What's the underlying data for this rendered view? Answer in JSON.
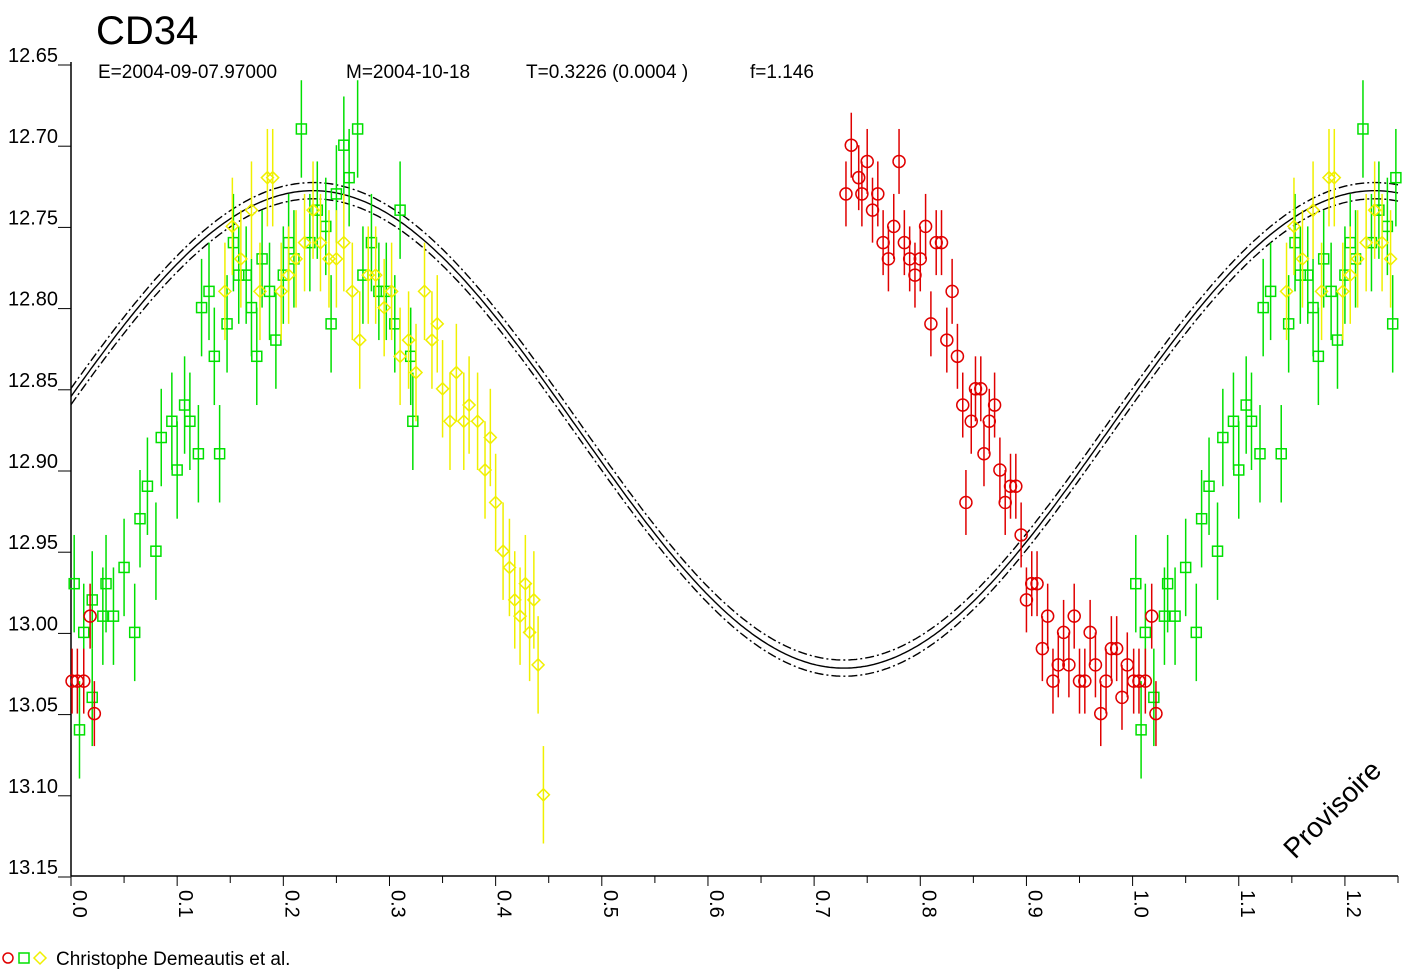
{
  "chart_data": {
    "type": "scatter",
    "title": "CD34",
    "subtitle": {
      "epoch": "E=2004-09-07.97000",
      "mean": "M=2004-10-18",
      "period": "T=0.3226 (0.0004 )",
      "f": "f=1.146"
    },
    "xlabel": "",
    "ylabel": "",
    "xlim": [
      0.0,
      1.25
    ],
    "ylim": [
      12.65,
      13.15
    ],
    "y_inverted": true,
    "x_ticks": [
      "0.0",
      "0.1",
      "0.2",
      "0.3",
      "0.4",
      "0.5",
      "0.6",
      "0.7",
      "0.8",
      "0.9",
      "1.0",
      "1.1",
      "1.2"
    ],
    "y_ticks": [
      "12.65",
      "12.70",
      "12.75",
      "12.80",
      "12.85",
      "12.90",
      "12.95",
      "13.00",
      "13.05",
      "13.10",
      "13.15"
    ],
    "model": {
      "description": "sinusoidal fit",
      "mean": 12.875,
      "amplitude": 0.147,
      "phase_of_max": 0.228,
      "envelope": 0.005
    },
    "legend_text": "Christophe Demeautis et al.",
    "watermark": "Provisoire",
    "series": [
      {
        "marker": "square",
        "color": "#00e000",
        "points": [
          [
            0.003,
            12.97,
            0.03
          ],
          [
            0.008,
            13.06,
            0.03
          ],
          [
            0.012,
            13.0,
            0.03
          ],
          [
            0.02,
            13.04,
            0.03
          ],
          [
            0.02,
            12.98,
            0.03
          ],
          [
            0.03,
            12.99,
            0.03
          ],
          [
            0.033,
            12.97,
            0.03
          ],
          [
            0.04,
            12.99,
            0.03
          ],
          [
            0.05,
            12.96,
            0.03
          ],
          [
            0.06,
            13.0,
            0.03
          ],
          [
            0.065,
            12.93,
            0.03
          ],
          [
            0.072,
            12.91,
            0.03
          ],
          [
            0.08,
            12.95,
            0.03
          ],
          [
            0.085,
            12.88,
            0.03
          ],
          [
            0.095,
            12.87,
            0.03
          ],
          [
            0.1,
            12.9,
            0.03
          ],
          [
            0.107,
            12.86,
            0.03
          ],
          [
            0.112,
            12.87,
            0.03
          ],
          [
            0.12,
            12.89,
            0.03
          ],
          [
            0.123,
            12.8,
            0.03
          ],
          [
            0.13,
            12.79,
            0.03
          ],
          [
            0.135,
            12.83,
            0.03
          ],
          [
            0.14,
            12.89,
            0.03
          ],
          [
            0.147,
            12.81,
            0.03
          ],
          [
            0.153,
            12.76,
            0.03
          ],
          [
            0.158,
            12.78,
            0.03
          ],
          [
            0.165,
            12.78,
            0.03
          ],
          [
            0.17,
            12.8,
            0.03
          ],
          [
            0.175,
            12.83,
            0.03
          ],
          [
            0.18,
            12.77,
            0.03
          ],
          [
            0.187,
            12.79,
            0.03
          ],
          [
            0.193,
            12.82,
            0.03
          ],
          [
            0.2,
            12.78,
            0.03
          ],
          [
            0.205,
            12.76,
            0.03
          ],
          [
            0.21,
            12.77,
            0.03
          ],
          [
            0.217,
            12.69,
            0.03
          ],
          [
            0.225,
            12.76,
            0.03
          ],
          [
            0.232,
            12.74,
            0.03
          ],
          [
            0.24,
            12.75,
            0.03
          ],
          [
            0.245,
            12.81,
            0.03
          ],
          [
            0.25,
            12.73,
            0.03
          ],
          [
            0.257,
            12.7,
            0.03
          ],
          [
            0.262,
            12.72,
            0.03
          ],
          [
            0.27,
            12.69,
            0.03
          ],
          [
            0.275,
            12.78,
            0.03
          ],
          [
            0.283,
            12.76,
            0.03
          ],
          [
            0.29,
            12.79,
            0.03
          ],
          [
            0.297,
            12.79,
            0.03
          ],
          [
            0.305,
            12.81,
            0.03
          ],
          [
            0.31,
            12.74,
            0.03
          ],
          [
            0.32,
            12.83,
            0.03
          ],
          [
            0.322,
            12.87,
            0.03
          ],
          [
            1.003,
            12.97,
            0.03
          ],
          [
            1.008,
            13.06,
            0.03
          ],
          [
            1.012,
            13.0,
            0.03
          ],
          [
            1.02,
            13.04,
            0.03
          ],
          [
            1.03,
            12.99,
            0.03
          ],
          [
            1.033,
            12.97,
            0.03
          ],
          [
            1.04,
            12.99,
            0.03
          ],
          [
            1.05,
            12.96,
            0.03
          ],
          [
            1.06,
            13.0,
            0.03
          ],
          [
            1.065,
            12.93,
            0.03
          ],
          [
            1.072,
            12.91,
            0.03
          ],
          [
            1.08,
            12.95,
            0.03
          ],
          [
            1.085,
            12.88,
            0.03
          ],
          [
            1.095,
            12.87,
            0.03
          ],
          [
            1.1,
            12.9,
            0.03
          ],
          [
            1.107,
            12.86,
            0.03
          ],
          [
            1.112,
            12.87,
            0.03
          ],
          [
            1.12,
            12.89,
            0.03
          ],
          [
            1.123,
            12.8,
            0.03
          ],
          [
            1.13,
            12.79,
            0.03
          ],
          [
            1.14,
            12.89,
            0.03
          ],
          [
            1.147,
            12.81,
            0.03
          ],
          [
            1.153,
            12.76,
            0.03
          ],
          [
            1.158,
            12.78,
            0.03
          ],
          [
            1.165,
            12.78,
            0.03
          ],
          [
            1.17,
            12.8,
            0.03
          ],
          [
            1.175,
            12.83,
            0.03
          ],
          [
            1.18,
            12.77,
            0.03
          ],
          [
            1.187,
            12.79,
            0.03
          ],
          [
            1.193,
            12.82,
            0.03
          ],
          [
            1.2,
            12.78,
            0.03
          ],
          [
            1.205,
            12.76,
            0.03
          ],
          [
            1.21,
            12.77,
            0.03
          ],
          [
            1.217,
            12.69,
            0.03
          ],
          [
            1.225,
            12.76,
            0.03
          ],
          [
            1.232,
            12.74,
            0.03
          ],
          [
            1.24,
            12.75,
            0.03
          ],
          [
            1.245,
            12.81,
            0.03
          ],
          [
            1.248,
            12.72,
            0.03
          ]
        ]
      },
      {
        "marker": "diamond",
        "color": "#f0f000",
        "points": [
          [
            0.145,
            12.79,
            0.03
          ],
          [
            0.152,
            12.75,
            0.03
          ],
          [
            0.16,
            12.77,
            0.03
          ],
          [
            0.17,
            12.74,
            0.03
          ],
          [
            0.178,
            12.79,
            0.03
          ],
          [
            0.185,
            12.72,
            0.03
          ],
          [
            0.19,
            12.72,
            0.03
          ],
          [
            0.198,
            12.79,
            0.03
          ],
          [
            0.205,
            12.78,
            0.03
          ],
          [
            0.212,
            12.77,
            0.03
          ],
          [
            0.22,
            12.76,
            0.03
          ],
          [
            0.228,
            12.74,
            0.03
          ],
          [
            0.235,
            12.76,
            0.03
          ],
          [
            0.243,
            12.77,
            0.03
          ],
          [
            0.25,
            12.77,
            0.03
          ],
          [
            0.257,
            12.76,
            0.03
          ],
          [
            0.265,
            12.79,
            0.03
          ],
          [
            0.272,
            12.82,
            0.03
          ],
          [
            0.28,
            12.78,
            0.03
          ],
          [
            0.287,
            12.78,
            0.03
          ],
          [
            0.295,
            12.8,
            0.03
          ],
          [
            0.302,
            12.79,
            0.03
          ],
          [
            0.31,
            12.83,
            0.03
          ],
          [
            0.318,
            12.82,
            0.03
          ],
          [
            0.325,
            12.84,
            0.03
          ],
          [
            0.333,
            12.79,
            0.03
          ],
          [
            0.34,
            12.82,
            0.03
          ],
          [
            0.345,
            12.81,
            0.03
          ],
          [
            0.35,
            12.85,
            0.03
          ],
          [
            0.357,
            12.87,
            0.03
          ],
          [
            0.363,
            12.84,
            0.03
          ],
          [
            0.37,
            12.87,
            0.03
          ],
          [
            0.375,
            12.86,
            0.03
          ],
          [
            0.383,
            12.87,
            0.03
          ],
          [
            0.39,
            12.9,
            0.03
          ],
          [
            0.395,
            12.88,
            0.03
          ],
          [
            0.4,
            12.92,
            0.03
          ],
          [
            0.407,
            12.95,
            0.03
          ],
          [
            0.413,
            12.96,
            0.03
          ],
          [
            0.418,
            12.98,
            0.03
          ],
          [
            0.423,
            12.99,
            0.03
          ],
          [
            0.428,
            12.97,
            0.03
          ],
          [
            0.432,
            13.0,
            0.03
          ],
          [
            0.436,
            12.98,
            0.03
          ],
          [
            0.44,
            13.02,
            0.03
          ],
          [
            0.445,
            13.1,
            0.03
          ],
          [
            1.145,
            12.79,
            0.03
          ],
          [
            1.152,
            12.75,
            0.03
          ],
          [
            1.16,
            12.77,
            0.03
          ],
          [
            1.17,
            12.74,
            0.03
          ],
          [
            1.178,
            12.79,
            0.03
          ],
          [
            1.185,
            12.72,
            0.03
          ],
          [
            1.19,
            12.72,
            0.03
          ],
          [
            1.198,
            12.79,
            0.03
          ],
          [
            1.205,
            12.78,
            0.03
          ],
          [
            1.212,
            12.77,
            0.03
          ],
          [
            1.22,
            12.76,
            0.03
          ],
          [
            1.228,
            12.74,
            0.03
          ],
          [
            1.235,
            12.76,
            0.03
          ],
          [
            1.243,
            12.77,
            0.03
          ]
        ]
      },
      {
        "marker": "circle",
        "color": "#e00000",
        "points": [
          [
            0.001,
            13.03,
            0.02
          ],
          [
            0.006,
            13.03,
            0.02
          ],
          [
            0.012,
            13.03,
            0.02
          ],
          [
            0.018,
            12.99,
            0.02
          ],
          [
            0.022,
            13.05,
            0.02
          ],
          [
            0.73,
            12.73,
            0.02
          ],
          [
            0.735,
            12.7,
            0.02
          ],
          [
            0.742,
            12.72,
            0.02
          ],
          [
            0.745,
            12.73,
            0.02
          ],
          [
            0.75,
            12.71,
            0.02
          ],
          [
            0.755,
            12.74,
            0.02
          ],
          [
            0.76,
            12.73,
            0.02
          ],
          [
            0.765,
            12.76,
            0.02
          ],
          [
            0.77,
            12.77,
            0.02
          ],
          [
            0.775,
            12.75,
            0.02
          ],
          [
            0.78,
            12.71,
            0.02
          ],
          [
            0.785,
            12.76,
            0.02
          ],
          [
            0.79,
            12.77,
            0.02
          ],
          [
            0.795,
            12.78,
            0.02
          ],
          [
            0.8,
            12.77,
            0.02
          ],
          [
            0.805,
            12.75,
            0.02
          ],
          [
            0.81,
            12.81,
            0.02
          ],
          [
            0.815,
            12.76,
            0.02
          ],
          [
            0.82,
            12.76,
            0.02
          ],
          [
            0.825,
            12.82,
            0.02
          ],
          [
            0.83,
            12.79,
            0.02
          ],
          [
            0.835,
            12.83,
            0.02
          ],
          [
            0.84,
            12.86,
            0.02
          ],
          [
            0.843,
            12.92,
            0.02
          ],
          [
            0.848,
            12.87,
            0.02
          ],
          [
            0.852,
            12.85,
            0.02
          ],
          [
            0.857,
            12.85,
            0.02
          ],
          [
            0.86,
            12.89,
            0.02
          ],
          [
            0.865,
            12.87,
            0.02
          ],
          [
            0.87,
            12.86,
            0.02
          ],
          [
            0.875,
            12.9,
            0.02
          ],
          [
            0.88,
            12.92,
            0.02
          ],
          [
            0.885,
            12.91,
            0.02
          ],
          [
            0.89,
            12.91,
            0.02
          ],
          [
            0.895,
            12.94,
            0.02
          ],
          [
            0.9,
            12.98,
            0.02
          ],
          [
            0.905,
            12.97,
            0.02
          ],
          [
            0.91,
            12.97,
            0.02
          ],
          [
            0.915,
            13.01,
            0.02
          ],
          [
            0.92,
            12.99,
            0.02
          ],
          [
            0.925,
            13.03,
            0.02
          ],
          [
            0.93,
            13.02,
            0.02
          ],
          [
            0.935,
            13.0,
            0.02
          ],
          [
            0.94,
            13.02,
            0.02
          ],
          [
            0.945,
            12.99,
            0.02
          ],
          [
            0.95,
            13.03,
            0.02
          ],
          [
            0.955,
            13.03,
            0.02
          ],
          [
            0.96,
            13.0,
            0.02
          ],
          [
            0.965,
            13.02,
            0.02
          ],
          [
            0.97,
            13.05,
            0.02
          ],
          [
            0.975,
            13.03,
            0.02
          ],
          [
            0.98,
            13.01,
            0.02
          ],
          [
            0.985,
            13.01,
            0.02
          ],
          [
            0.99,
            13.04,
            0.02
          ],
          [
            0.995,
            13.02,
            0.02
          ],
          [
            1.001,
            13.03,
            0.02
          ],
          [
            1.006,
            13.03,
            0.02
          ],
          [
            1.012,
            13.03,
            0.02
          ],
          [
            1.018,
            12.99,
            0.02
          ],
          [
            1.022,
            13.05,
            0.02
          ]
        ]
      }
    ]
  }
}
